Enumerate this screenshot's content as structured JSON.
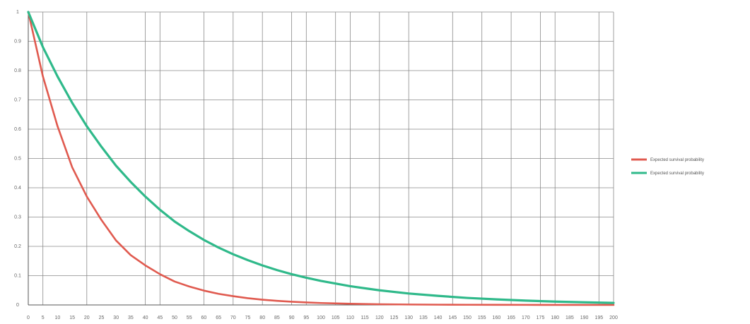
{
  "chart_data": {
    "type": "line",
    "title": "",
    "xlabel": "",
    "ylabel": "",
    "grid": true,
    "legend_position": "right",
    "ylim": [
      0,
      1
    ],
    "xlim": [
      0,
      200
    ],
    "y_ticks": [
      {
        "value": 0,
        "label": "0"
      },
      {
        "value": 0.1,
        "label": "0.1"
      },
      {
        "value": 0.2,
        "label": "0.2"
      },
      {
        "value": 0.3,
        "label": "0.3"
      },
      {
        "value": 0.4,
        "label": "0.4"
      },
      {
        "value": 0.5,
        "label": "0.5"
      },
      {
        "value": 0.6,
        "label": "0.6"
      },
      {
        "value": 0.7,
        "label": "0.7"
      },
      {
        "value": 0.8,
        "label": "0.8"
      },
      {
        "value": 0.9,
        "label": "0.9"
      },
      {
        "value": 1,
        "label": "1"
      }
    ],
    "x_ticks": [
      0,
      5,
      10,
      15,
      20,
      25,
      30,
      35,
      40,
      45,
      50,
      55,
      60,
      65,
      70,
      75,
      80,
      85,
      90,
      95,
      100,
      105,
      110,
      115,
      120,
      125,
      130,
      135,
      140,
      145,
      150,
      155,
      160,
      165,
      170,
      175,
      180,
      185,
      190,
      195,
      200
    ],
    "x_gridlines": [
      0,
      5,
      20,
      40,
      45,
      60,
      70,
      80,
      90,
      95,
      105,
      110,
      120,
      130,
      145,
      155,
      165,
      175,
      180,
      195,
      200
    ],
    "x": [
      0,
      5,
      10,
      15,
      20,
      25,
      30,
      35,
      40,
      45,
      50,
      55,
      60,
      65,
      70,
      75,
      80,
      85,
      90,
      95,
      100,
      110,
      120,
      130,
      140,
      150,
      160,
      170,
      180,
      190,
      200
    ],
    "series": [
      {
        "name": "Expected survival probability",
        "color": "#e05a4f",
        "values": [
          1.0,
          0.78,
          0.61,
          0.47,
          0.37,
          0.29,
          0.22,
          0.17,
          0.135,
          0.105,
          0.08,
          0.063,
          0.049,
          0.038,
          0.03,
          0.023,
          0.018,
          0.014,
          0.011,
          0.0085,
          0.0066,
          0.004,
          0.0024,
          0.0015,
          0.0009,
          0.0006,
          0.0004,
          0.0003,
          0.0002,
          0.0002,
          0.0001
        ]
      },
      {
        "name": "Expected survival probability",
        "color": "#2fb98a",
        "values": [
          1.0,
          0.88,
          0.78,
          0.69,
          0.61,
          0.54,
          0.475,
          0.42,
          0.37,
          0.325,
          0.285,
          0.252,
          0.222,
          0.196,
          0.173,
          0.153,
          0.135,
          0.119,
          0.105,
          0.093,
          0.082,
          0.064,
          0.05,
          0.039,
          0.031,
          0.024,
          0.019,
          0.0148,
          0.0115,
          0.009,
          0.007
        ]
      }
    ]
  }
}
